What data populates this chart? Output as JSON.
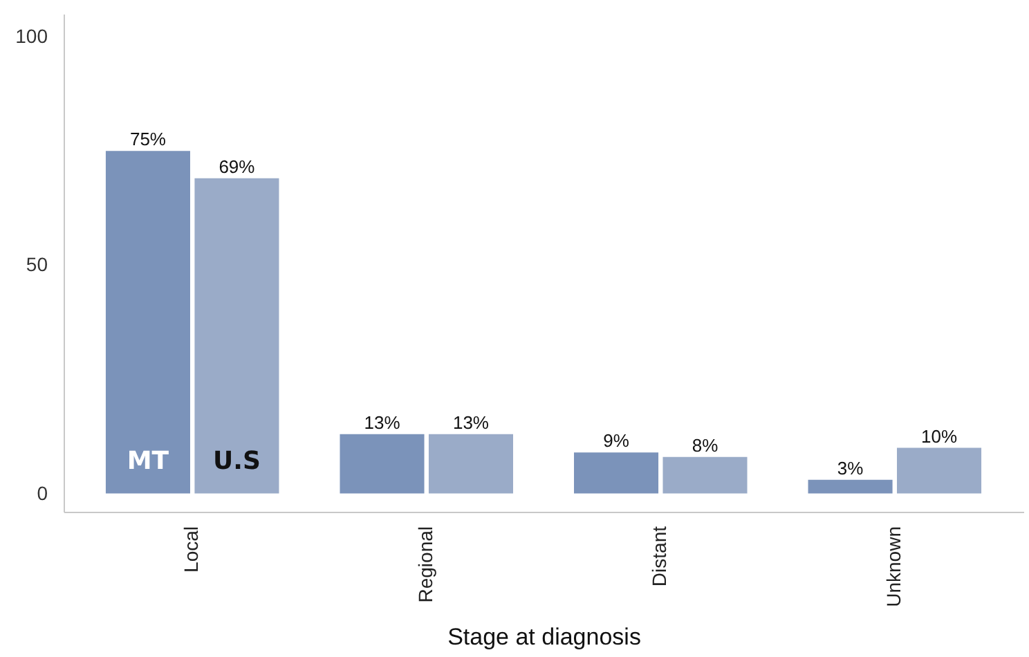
{
  "chart_data": {
    "type": "bar",
    "xlabel": "Stage at diagnosis",
    "categories": [
      "Local",
      "Regional",
      "Distant",
      "Unknown"
    ],
    "series": [
      {
        "name": "MT",
        "color": "#7b93ba",
        "values": [
          75,
          13,
          9,
          3
        ],
        "value_labels": [
          "75%",
          "13%",
          "9%",
          "3%"
        ]
      },
      {
        "name": "U.S",
        "color": "#9aabc8",
        "values": [
          69,
          13,
          8,
          10
        ],
        "value_labels": [
          "69%",
          "13%",
          "8%",
          "10%"
        ]
      }
    ],
    "ylim": [
      -4,
      105
    ],
    "yticks": [
      0,
      50,
      100
    ],
    "grid": false,
    "legend": false
  }
}
